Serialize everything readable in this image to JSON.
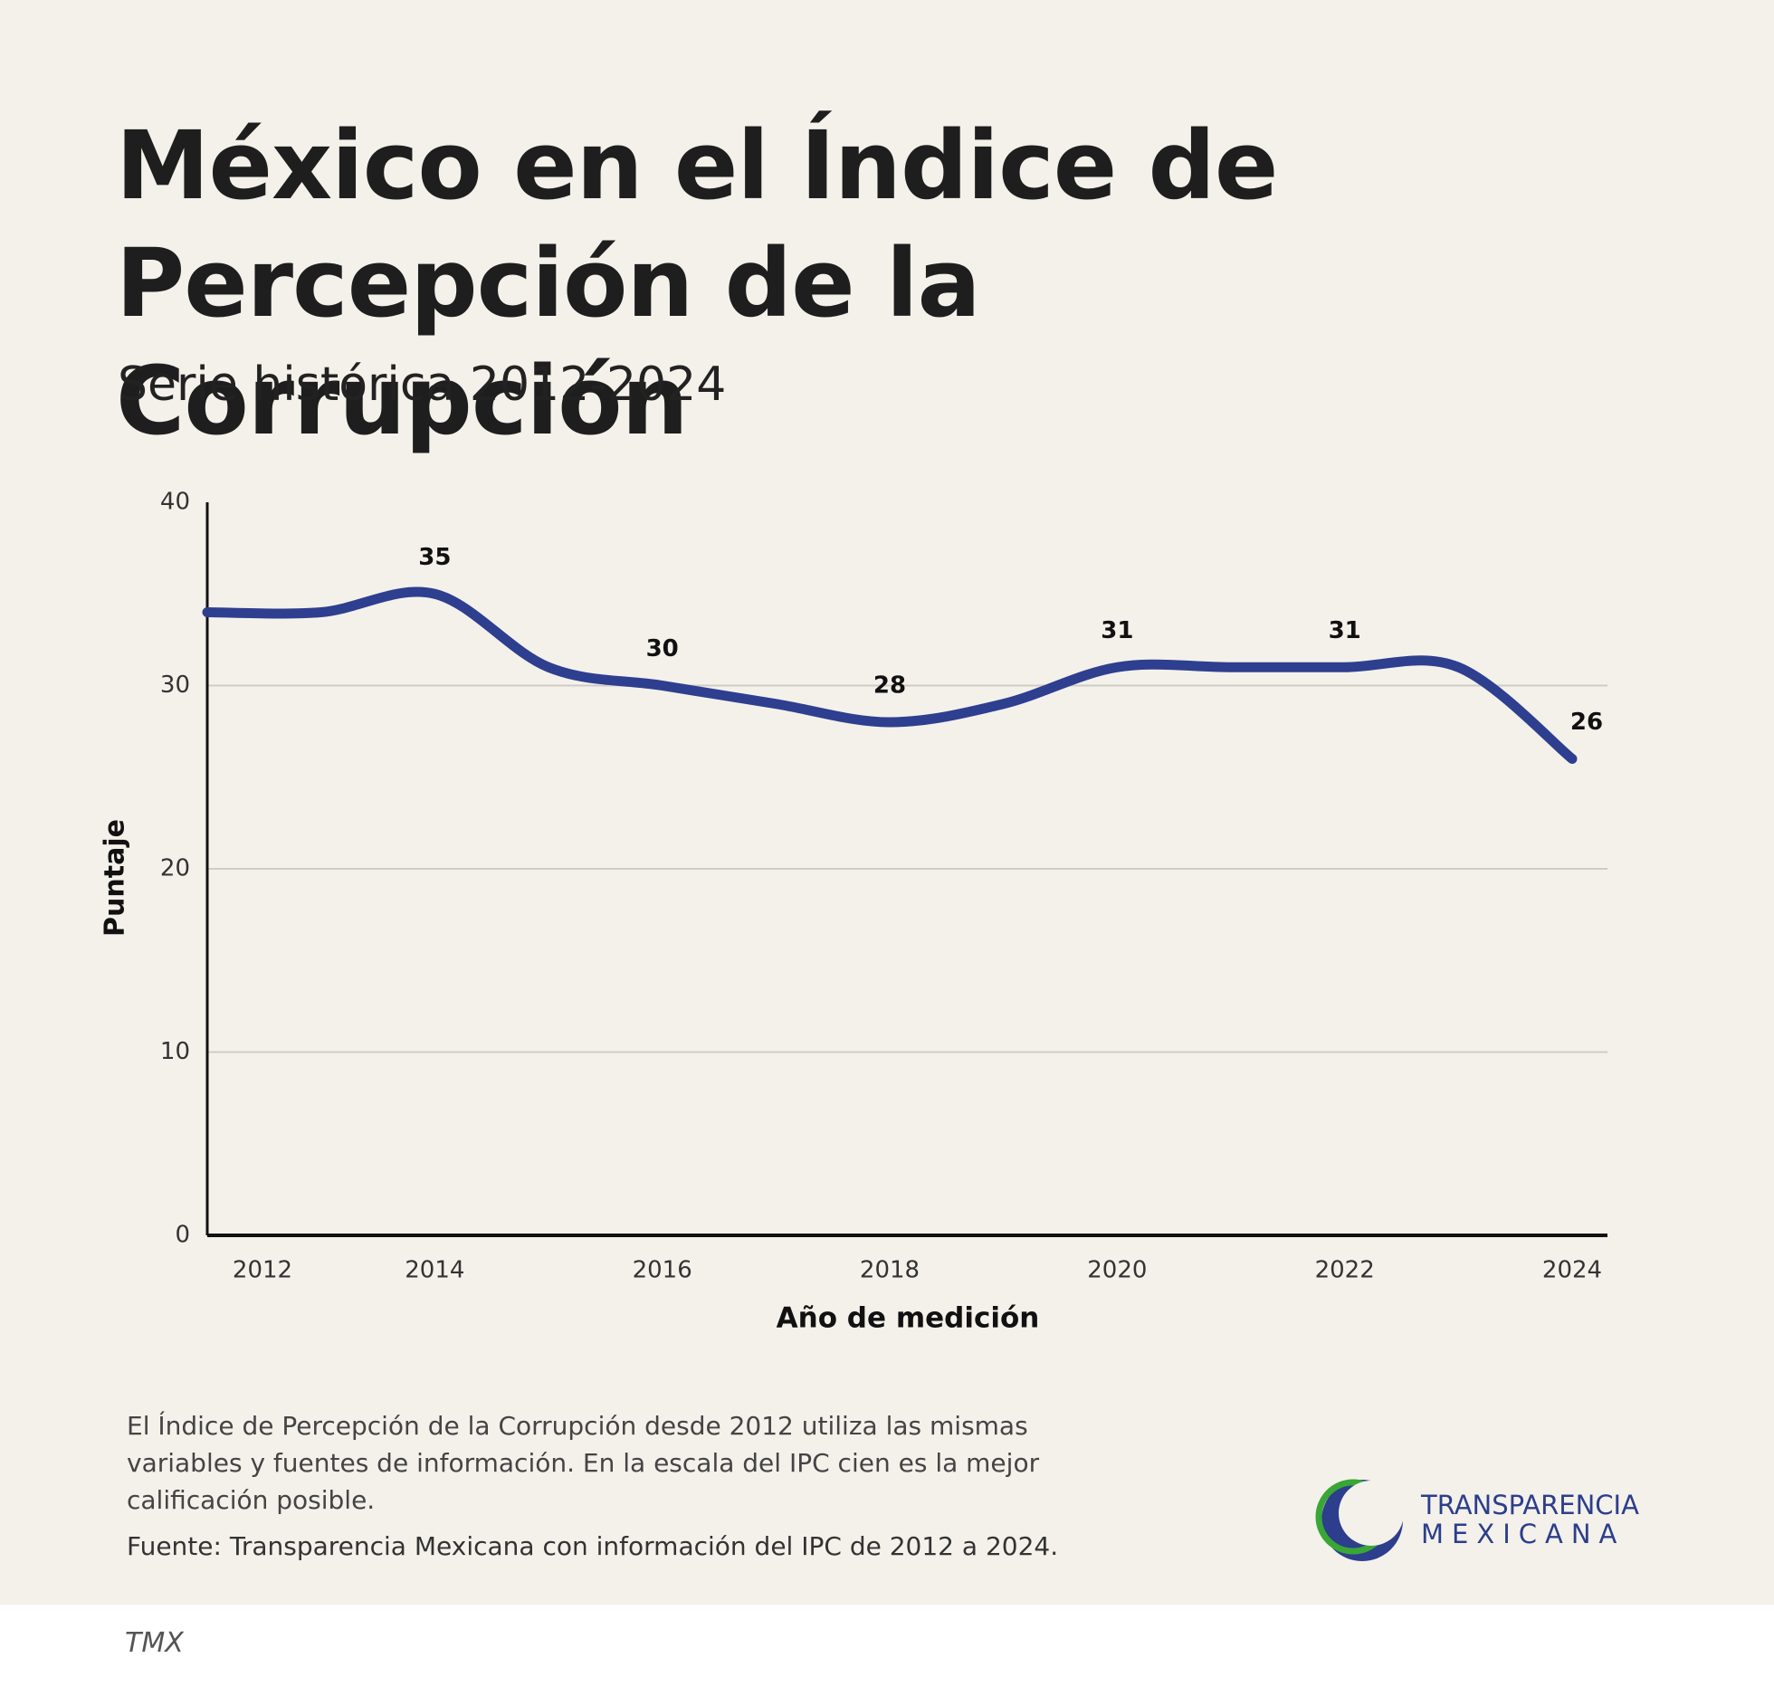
{
  "chart_data": {
    "type": "line",
    "title": "México en el Índice de Percepción de la Corrupción",
    "subtitle": "Serie histórica 2012-2024",
    "x_label": "Año de medición",
    "y_label": "Puntaje",
    "x": [
      2012,
      2013,
      2014,
      2015,
      2016,
      2017,
      2018,
      2019,
      2020,
      2021,
      2022,
      2023,
      2024
    ],
    "series": [
      {
        "name": "Puntaje",
        "color": "#2e3f8f",
        "values": [
          34,
          34,
          35,
          31,
          30,
          29,
          28,
          29,
          31,
          31,
          31,
          31,
          26
        ],
        "value_labels": [
          null,
          null,
          "35",
          null,
          "30",
          null,
          "28",
          null,
          "31",
          null,
          "31",
          null,
          "26"
        ]
      }
    ],
    "xlim": [
      2012,
      2024
    ],
    "xticks": [
      2012,
      2014,
      2016,
      2018,
      2020,
      2022,
      2024
    ],
    "ylim": [
      0,
      40
    ],
    "yticks": [
      0,
      10,
      20,
      30,
      40
    ],
    "grid": true
  },
  "note": "El Índice de Percepción de la Corrupción desde 2012 utiliza las mismas variables y fuentes de información. En la escala del IPC cien es la mejor calificación posible.",
  "source": "Fuente: Transparencia Mexicana con información del IPC de 2012 a 2024.",
  "logo": {
    "line1": "TRANSPARENCIA",
    "line2": "MEXICANA"
  },
  "footer": "TMX"
}
